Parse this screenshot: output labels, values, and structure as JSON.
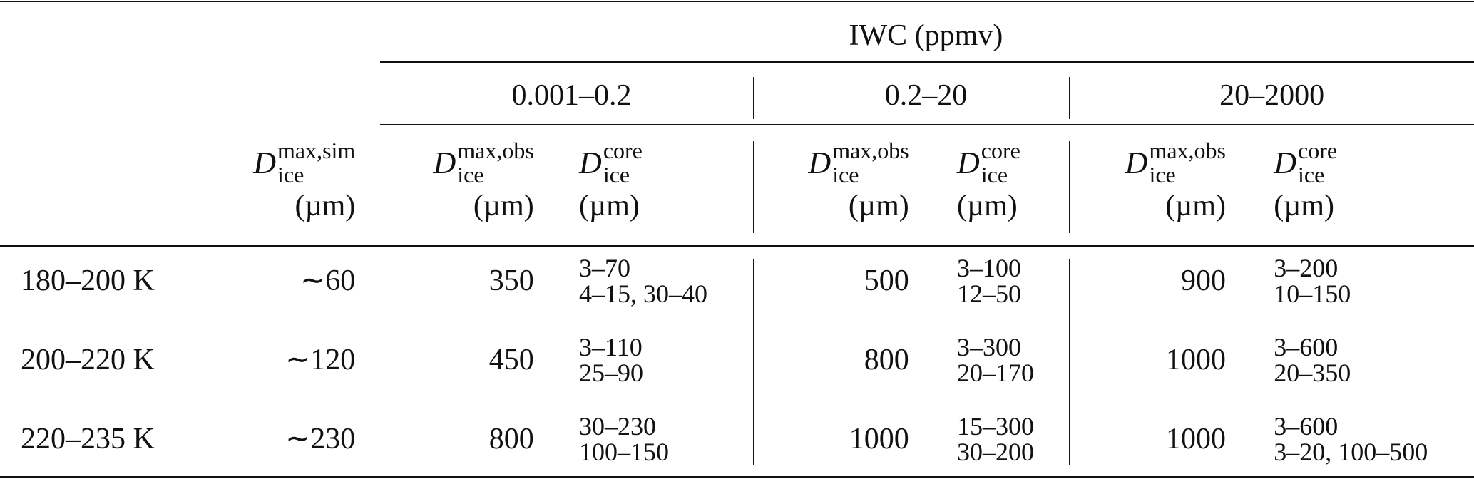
{
  "header": {
    "group_title": "IWC (ppmv)",
    "ranges": [
      "0.001–0.2",
      "0.2–20",
      "20–2000"
    ],
    "columns": [
      {
        "symbol": "D",
        "sup": "max,sim",
        "sub": "ice",
        "unit": "(µm)"
      },
      {
        "symbol": "D",
        "sup": "max,obs",
        "sub": "ice",
        "unit": "(µm)"
      },
      {
        "symbol": "D",
        "sup": "core",
        "sub": "ice",
        "unit": "(µm)"
      },
      {
        "symbol": "D",
        "sup": "max,obs",
        "sub": "ice",
        "unit": "(µm)"
      },
      {
        "symbol": "D",
        "sup": "core",
        "sub": "ice",
        "unit": "(µm)"
      },
      {
        "symbol": "D",
        "sup": "max,obs",
        "sub": "ice",
        "unit": "(µm)"
      },
      {
        "symbol": "D",
        "sup": "core",
        "sub": "ice",
        "unit": "(µm)"
      }
    ]
  },
  "rows": [
    {
      "label": "180–200 K",
      "sim": "∼60",
      "groups": [
        {
          "max_obs": "350",
          "core": [
            "3–70",
            "4–15, 30–40"
          ]
        },
        {
          "max_obs": "500",
          "core": [
            "3–100",
            "12–50"
          ]
        },
        {
          "max_obs": "900",
          "core": [
            "3–200",
            "10–150"
          ]
        }
      ]
    },
    {
      "label": "200–220 K",
      "sim": "∼120",
      "groups": [
        {
          "max_obs": "450",
          "core": [
            "3–110",
            "25–90"
          ]
        },
        {
          "max_obs": "800",
          "core": [
            "3–300",
            "20–170"
          ]
        },
        {
          "max_obs": "1000",
          "core": [
            "3–600",
            "20–350"
          ]
        }
      ]
    },
    {
      "label": "220–235 K",
      "sim": "∼230",
      "groups": [
        {
          "max_obs": "800",
          "core": [
            "30–230",
            "100–150"
          ]
        },
        {
          "max_obs": "1000",
          "core": [
            "15–300",
            "30–200"
          ]
        },
        {
          "max_obs": "1000",
          "core": [
            "3–600",
            "3–20, 100–500"
          ]
        }
      ]
    }
  ]
}
